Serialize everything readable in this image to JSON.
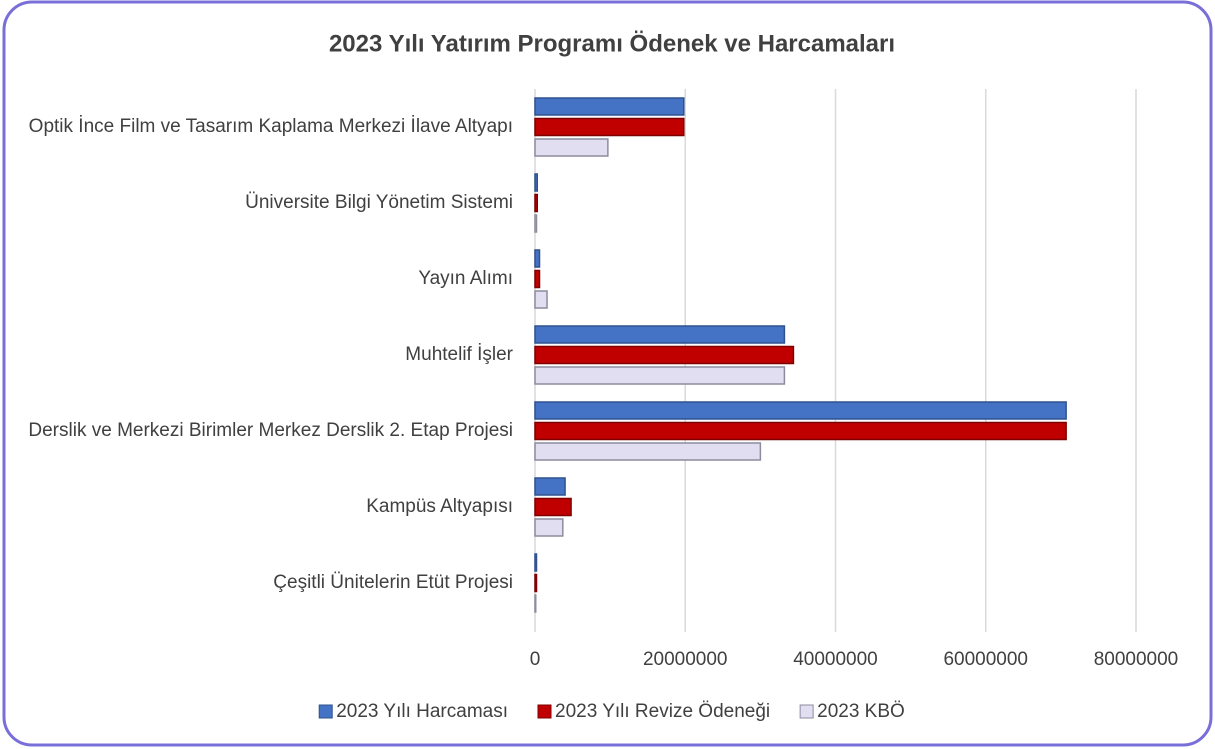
{
  "chart_data": {
    "type": "bar",
    "orientation": "horizontal",
    "title": "2023 Yılı Yatırım Programı Ödenek ve Harcamaları",
    "categories": [
      "Optik İnce Film ve Tasarım Kaplama Merkezi İlave Altyapı",
      "Üniversite Bilgi Yönetim Sistemi",
      "Yayın Alımı",
      "Muhtelif İşler",
      "Derslik ve Merkezi Birimler Merkez Derslik 2. Etap Projesi",
      "Kampüs Altyapısı",
      "Çeşitli Ünitelerin Etüt Projesi"
    ],
    "series": [
      {
        "name": "2023 Yılı Harcaması",
        "color": "#4472c4",
        "values": [
          19800000,
          300000,
          600000,
          33200000,
          70700000,
          4000000,
          200000
        ]
      },
      {
        "name": "2023 Yılı Revize Ödeneği",
        "color": "#c00000",
        "values": [
          19800000,
          300000,
          600000,
          34400000,
          70700000,
          4800000,
          200000
        ]
      },
      {
        "name": "2023 KBÖ",
        "color": "#e2def2",
        "values": [
          9700000,
          200000,
          1600000,
          33200000,
          30000000,
          3700000,
          100000
        ]
      }
    ],
    "xlim": [
      0,
      80000000
    ],
    "xticks": [
      0,
      20000000,
      40000000,
      60000000,
      80000000
    ],
    "grid": true,
    "legend": "bottom"
  }
}
